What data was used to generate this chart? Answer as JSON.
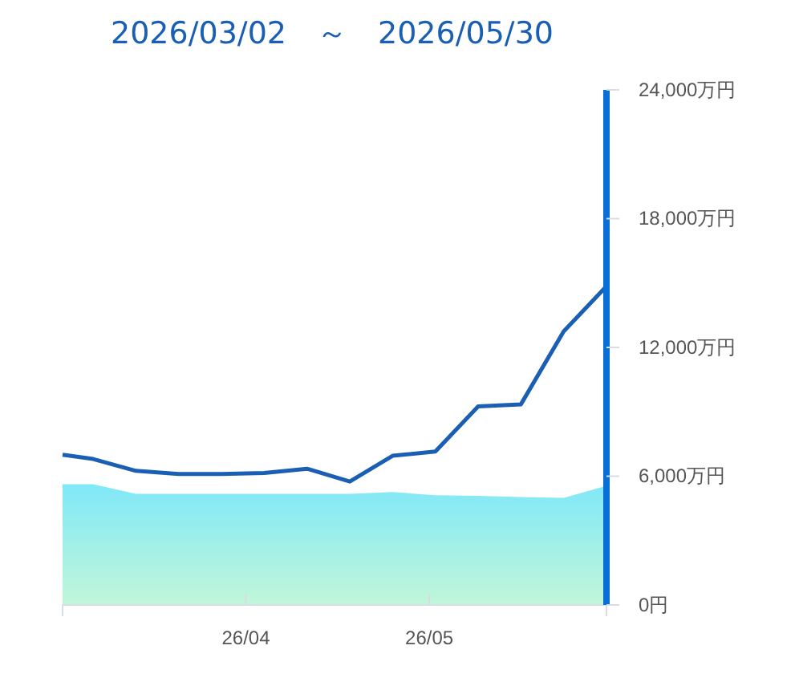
{
  "chart_data": {
    "type": "line",
    "title": "2026/03/02　～　2026/05/30",
    "x": [
      "2026-03-02",
      "2026-03-07",
      "2026-03-14",
      "2026-03-21",
      "2026-03-28",
      "2026-04-04",
      "2026-04-11",
      "2026-04-18",
      "2026-04-25",
      "2026-05-02",
      "2026-05-09",
      "2026-05-16",
      "2026-05-23",
      "2026-05-30"
    ],
    "series": [
      {
        "type": "area",
        "color": "#80e8f8",
        "values": [
          5630,
          5630,
          5180,
          5180,
          5180,
          5180,
          5180,
          5180,
          5260,
          5110,
          5080,
          5030,
          4990,
          5550
        ]
      },
      {
        "color": "#1a5fb4",
        "values": [
          7000,
          6800,
          6250,
          6100,
          6100,
          6150,
          6350,
          5750,
          6950,
          7150,
          9250,
          9350,
          12750,
          14850
        ]
      }
    ],
    "xlim": [
      "2026-03-02",
      "2026-05-30"
    ],
    "xticks": [
      {
        "value": "2026-04-01",
        "label": "26/04"
      },
      {
        "value": "2026-05-01",
        "label": "26/05"
      }
    ],
    "ylim": [
      0,
      24000
    ],
    "yticks": [
      {
        "value": 0,
        "label": "0円"
      },
      {
        "value": 6000,
        "label": "6,000万円"
      },
      {
        "value": 12000,
        "label": "12,000万円"
      },
      {
        "value": 18000,
        "label": "18,000万円"
      },
      {
        "value": 24000,
        "label": "24,000万円"
      }
    ],
    "grid": false,
    "marker": "none",
    "line_style": "solid"
  }
}
